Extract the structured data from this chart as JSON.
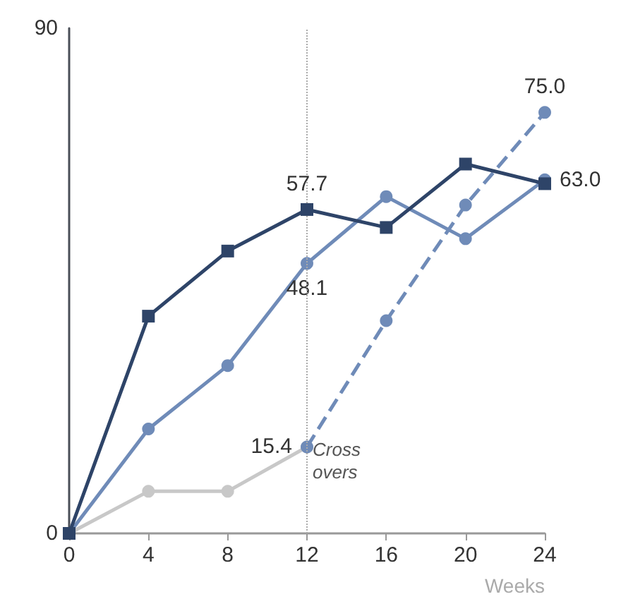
{
  "chart_data": {
    "type": "line",
    "xlabel": "Weeks",
    "x": [
      0,
      4,
      8,
      12,
      16,
      20,
      24
    ],
    "xlim": [
      0,
      24
    ],
    "xticks": [
      0,
      4,
      8,
      12,
      16,
      20,
      24
    ],
    "ylim": [
      0,
      90
    ],
    "yticks": [
      0,
      90
    ],
    "grid": false,
    "series": [
      {
        "color": "#c8c8c8",
        "marker": "circle",
        "line_style": "solid",
        "values": [
          0,
          7.5,
          7.5,
          15.4,
          null,
          null,
          null
        ]
      },
      {
        "color": "#6f8bb8",
        "marker": "circle",
        "line_style": "dashed",
        "values": [
          null,
          null,
          null,
          15.4,
          37.9,
          58.5,
          75
        ],
        "value_labels": [
          null,
          null,
          null,
          "15.4",
          null,
          null,
          "75.0"
        ]
      },
      {
        "color": "#6f8bb8",
        "marker": "circle",
        "line_style": "solid",
        "values": [
          0,
          18.6,
          29.9,
          48.1,
          60,
          52.5,
          63
        ],
        "value_labels": [
          null,
          null,
          null,
          "48.1",
          null,
          null,
          "63.0"
        ]
      },
      {
        "color": "#2e4468",
        "marker": "square",
        "line_style": "solid",
        "values": [
          0,
          38.7,
          50.3,
          57.7,
          54.5,
          65.8,
          62.3
        ],
        "value_labels": [
          null,
          null,
          null,
          "57.7",
          null,
          null,
          null
        ]
      }
    ],
    "ref_lines": [
      {
        "axis": "x",
        "value": 12,
        "color": "#aaaaaa",
        "line_style": "dotted"
      }
    ],
    "annotations": [
      {
        "text": "Cross overs",
        "x": 12,
        "y": 13
      }
    ]
  }
}
